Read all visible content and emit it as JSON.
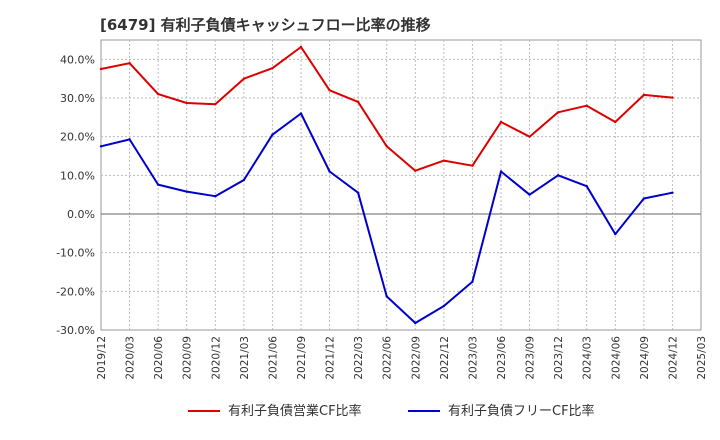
{
  "title": "[6479]  有利子負債キャッシュフロー比率の推移",
  "chart_data": {
    "type": "line",
    "title": "[6479]  有利子負債キャッシュフロー比率の推移",
    "xlabel": "",
    "ylabel": "",
    "ylim": [
      -30,
      45
    ],
    "yticks": [
      -30,
      -20,
      -10,
      0,
      10,
      20,
      30,
      40
    ],
    "ytick_labels": [
      "-30.0%",
      "-20.0%",
      "-10.0%",
      "0.0%",
      "10.0%",
      "20.0%",
      "30.0%",
      "40.0%"
    ],
    "x_labels": [
      "2019/12",
      "2020/03",
      "2020/06",
      "2020/09",
      "2020/12",
      "2021/03",
      "2021/06",
      "2021/09",
      "2021/12",
      "2022/03",
      "2022/06",
      "2022/09",
      "2022/12",
      "2023/03",
      "2023/06",
      "2023/09",
      "2023/12",
      "2024/03",
      "2024/06",
      "2024/09",
      "2024/12",
      "2025/03"
    ],
    "grid": true,
    "legend_position": "bottom",
    "series": [
      {
        "name": "有利子負債営業CF比率",
        "color": "#dd0000",
        "values": [
          37.5,
          39.0,
          31.0,
          28.7,
          28.4,
          35.0,
          37.7,
          43.2,
          32.0,
          29.0,
          17.5,
          11.2,
          13.8,
          12.5,
          23.8,
          20.0,
          26.3,
          28.0,
          23.8,
          30.8,
          30.1,
          null
        ]
      },
      {
        "name": "有利子負債フリーCF比率",
        "color": "#0000cc",
        "values": [
          17.5,
          19.3,
          7.6,
          5.8,
          4.6,
          8.8,
          20.5,
          26.0,
          11.0,
          5.5,
          -21.3,
          -28.2,
          -23.8,
          -17.5,
          11.0,
          5.0,
          10.0,
          7.2,
          -5.2,
          4.0,
          5.5,
          null
        ]
      }
    ]
  }
}
